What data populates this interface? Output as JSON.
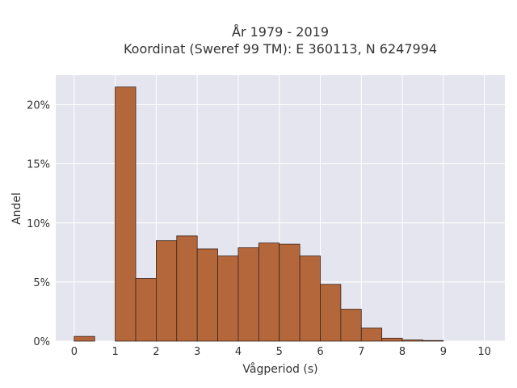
{
  "chart_data": {
    "type": "bar",
    "title_lines": [
      "År 1979 - 2019",
      "Koordinat (Sweref 99 TM): E 360113, N 6247994"
    ],
    "xlabel": "Vågperiod (s)",
    "ylabel": "Andel",
    "x_ticks": [
      "0",
      "1",
      "2",
      "3",
      "4",
      "5",
      "6",
      "7",
      "8",
      "9",
      "10"
    ],
    "y_ticks": [
      {
        "value": 0,
        "label": "0%"
      },
      {
        "value": 5,
        "label": "5%"
      },
      {
        "value": 10,
        "label": "10%"
      },
      {
        "value": 15,
        "label": "15%"
      },
      {
        "value": 20,
        "label": "20%"
      }
    ],
    "xlim": [
      -0.45,
      10.5
    ],
    "ylim": [
      0,
      22.5
    ],
    "bin_width": 0.5,
    "bins": [
      {
        "x": 0.0,
        "value": 0.4
      },
      {
        "x": 1.0,
        "value": 21.5
      },
      {
        "x": 1.5,
        "value": 5.3
      },
      {
        "x": 2.0,
        "value": 8.5
      },
      {
        "x": 2.5,
        "value": 8.9
      },
      {
        "x": 3.0,
        "value": 7.8
      },
      {
        "x": 3.5,
        "value": 7.2
      },
      {
        "x": 4.0,
        "value": 7.9
      },
      {
        "x": 4.5,
        "value": 8.3
      },
      {
        "x": 5.0,
        "value": 8.2
      },
      {
        "x": 5.5,
        "value": 7.2
      },
      {
        "x": 6.0,
        "value": 4.8
      },
      {
        "x": 6.5,
        "value": 2.7
      },
      {
        "x": 7.0,
        "value": 1.1
      },
      {
        "x": 7.5,
        "value": 0.25
      },
      {
        "x": 8.0,
        "value": 0.1
      },
      {
        "x": 8.5,
        "value": 0.05
      }
    ],
    "colors": {
      "bar": "#b5673c",
      "plot_bg": "#e5e5ef",
      "grid": "#ffffff"
    },
    "grid": true,
    "legend": "none"
  }
}
